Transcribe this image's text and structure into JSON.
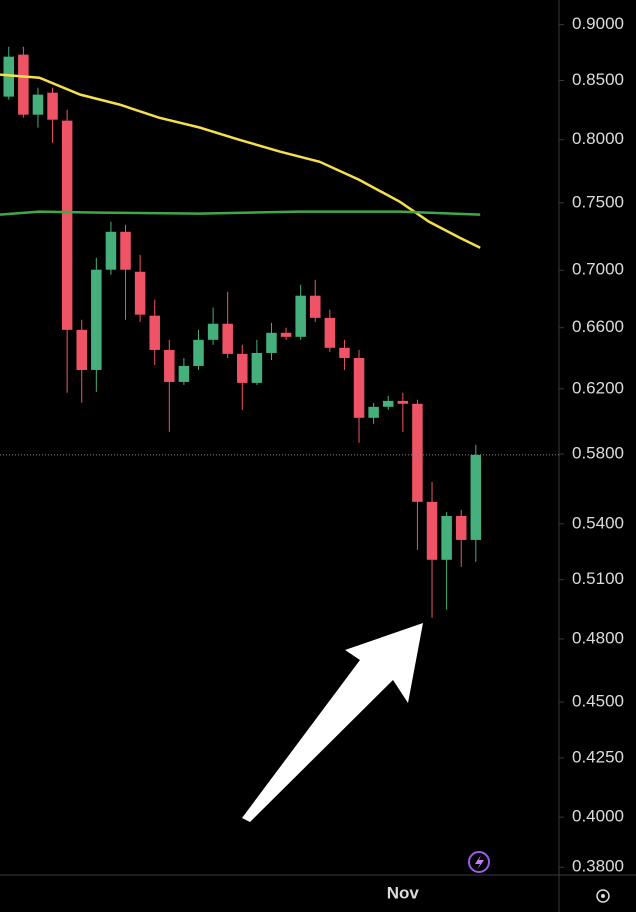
{
  "chart_data": {
    "type": "candlestick",
    "categories": [
      null,
      null,
      null,
      null,
      null,
      null,
      null,
      null,
      null,
      null,
      null,
      null,
      null,
      null,
      null,
      null,
      null,
      null,
      null,
      null,
      null,
      null,
      null,
      null,
      null,
      null,
      null,
      "Nov",
      null,
      null,
      null,
      null,
      null
    ],
    "open": [
      0.8361,
      0.8728,
      0.8208,
      0.8395,
      0.8158,
      0.6586,
      0.6321,
      0.7004,
      0.7281,
      0.6989,
      0.6682,
      0.6452,
      0.6244,
      0.6347,
      0.6519,
      0.6627,
      0.6426,
      0.6238,
      0.6432,
      0.6566,
      0.6539,
      0.682,
      0.6667,
      0.6466,
      0.6399,
      0.6019,
      0.6087,
      0.6124,
      0.6106,
      0.5523,
      0.5205,
      0.5444,
      0.5312
    ],
    "high": [
      0.8799,
      0.8799,
      0.8438,
      0.8438,
      0.825,
      0.6654,
      0.709,
      0.7356,
      0.7333,
      0.7111,
      0.6792,
      0.6519,
      0.6399,
      0.6586,
      0.6737,
      0.6848,
      0.6486,
      0.6519,
      0.6633,
      0.66,
      0.6897,
      0.6932,
      0.6723,
      0.6519,
      0.6452,
      0.6112,
      0.6156,
      0.6175,
      0.6131,
      0.5637,
      0.5466,
      0.5478,
      0.5855
    ],
    "low": [
      0.8335,
      0.8183,
      0.81,
      0.7976,
      0.6175,
      0.6112,
      0.6181,
      0.6968,
      0.6654,
      0.664,
      0.6353,
      0.5933,
      0.6225,
      0.6321,
      0.6486,
      0.6399,
      0.6068,
      0.6225,
      0.6386,
      0.6519,
      0.6519,
      0.664,
      0.6439,
      0.6321,
      0.5867,
      0.5982,
      0.6068,
      0.5933,
      0.5258,
      0.4905,
      0.4946,
      0.5168,
      0.5194
    ],
    "close": [
      0.871,
      0.8208,
      0.8378,
      0.8166,
      0.6586,
      0.6321,
      0.7004,
      0.7281,
      0.7004,
      0.6689,
      0.6452,
      0.6244,
      0.6347,
      0.6519,
      0.6627,
      0.6426,
      0.6238,
      0.6432,
      0.6566,
      0.6539,
      0.682,
      0.6667,
      0.6466,
      0.6399,
      0.6019,
      0.6087,
      0.6124,
      0.6106,
      0.5523,
      0.5205,
      0.5444,
      0.5312,
      0.5795
    ],
    "up_color": "#45b07c",
    "down_color": "#ef5466",
    "lines": [
      {
        "color": "#f5df4d",
        "x": [
          -0.6,
          2.1,
          4.9,
          7.6,
          10.3,
          13.1,
          15.8,
          18.6,
          21.3,
          24.0,
          26.8,
          28.8,
          30.9,
          32.3
        ],
        "values": [
          0.8551,
          0.8524,
          0.8378,
          0.8293,
          0.8183,
          0.81,
          0.8,
          0.7903,
          0.7822,
          0.7679,
          0.7508,
          0.7356,
          0.7237,
          0.7163
        ]
      },
      {
        "color": "#3fa84a",
        "x": [
          -0.6,
          2.1,
          6.2,
          13.1,
          19.9,
          26.8,
          32.3
        ],
        "values": [
          0.741,
          0.7433,
          0.7425,
          0.7418,
          0.7433,
          0.7433,
          0.741
        ]
      }
    ],
    "last_price": 0.5795,
    "log_scale": true,
    "xlim": [
      -0.6,
      37.7
    ],
    "ylim": [
      0.377,
      0.923
    ],
    "yticks": [
      {
        "value": 0.9,
        "label": "0.9000"
      },
      {
        "value": 0.85,
        "label": "0.8500"
      },
      {
        "value": 0.8,
        "label": "0.8000"
      },
      {
        "value": 0.75,
        "label": "0.7500"
      },
      {
        "value": 0.7,
        "label": "0.7000"
      },
      {
        "value": 0.66,
        "label": "0.6600"
      },
      {
        "value": 0.62,
        "label": "0.6200"
      },
      {
        "value": 0.58,
        "label": "0.5800"
      },
      {
        "value": 0.54,
        "label": "0.5400"
      },
      {
        "value": 0.51,
        "label": "0.5100"
      },
      {
        "value": 0.48,
        "label": "0.4800"
      },
      {
        "value": 0.45,
        "label": "0.4500"
      },
      {
        "value": 0.425,
        "label": "0.4250"
      },
      {
        "value": 0.4,
        "label": "0.4000"
      },
      {
        "value": 0.38,
        "label": "0.3800"
      }
    ]
  }
}
